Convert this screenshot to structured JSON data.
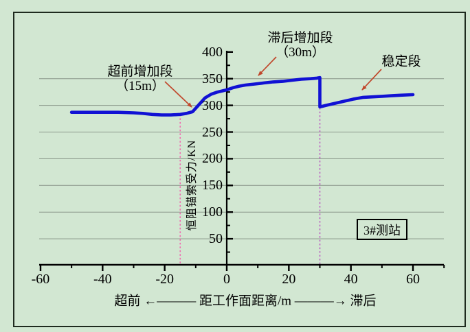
{
  "colors": {
    "background": "#d2e7d2",
    "frame_border": "#1f2b1f",
    "grid": "#879487",
    "axis": "#000000",
    "curve": "#1111d4",
    "arrow": "#c0472b"
  },
  "chart_data": {
    "type": "line",
    "title": "",
    "xlabel": "超前 ←——— 距工作面距离/m ———→ 滞后",
    "ylabel": "恒阻锚索受力/KN",
    "xlim": [
      -60,
      70
    ],
    "ylim": [
      0,
      400
    ],
    "x_ticks": [
      -60,
      -40,
      -20,
      0,
      20,
      40,
      60
    ],
    "x_minor_step": 10,
    "y_ticks": [
      50,
      100,
      150,
      200,
      250,
      300,
      350,
      400
    ],
    "y_minor_step": 25,
    "y_gridlines": [
      50,
      100,
      150,
      200,
      250,
      300,
      350
    ],
    "grid": "horizontal-only",
    "legend": "none",
    "station_label": "3#测站",
    "series": [
      {
        "name": "恒阻锚索受力",
        "color": "#1111d4",
        "points": [
          [
            -50,
            287
          ],
          [
            -45,
            287
          ],
          [
            -40,
            287
          ],
          [
            -35,
            287
          ],
          [
            -30,
            286
          ],
          [
            -27,
            285
          ],
          [
            -24,
            283
          ],
          [
            -21,
            282
          ],
          [
            -18,
            282
          ],
          [
            -15,
            283
          ],
          [
            -13,
            285
          ],
          [
            -11,
            288
          ],
          [
            -9,
            301
          ],
          [
            -7,
            314
          ],
          [
            -5,
            321
          ],
          [
            -3,
            325
          ],
          [
            0,
            329
          ],
          [
            2,
            333
          ],
          [
            4,
            336
          ],
          [
            6,
            338
          ],
          [
            9,
            340
          ],
          [
            12,
            342
          ],
          [
            15,
            344
          ],
          [
            18,
            345
          ],
          [
            21,
            347
          ],
          [
            24,
            349
          ],
          [
            27,
            350
          ],
          [
            29,
            351
          ],
          [
            30,
            352
          ],
          [
            30,
            297
          ],
          [
            32,
            300
          ],
          [
            35,
            304
          ],
          [
            38,
            308
          ],
          [
            41,
            312
          ],
          [
            44,
            315
          ],
          [
            47,
            316
          ],
          [
            50,
            317
          ],
          [
            53,
            318
          ],
          [
            56,
            319
          ],
          [
            60,
            320
          ]
        ]
      }
    ],
    "boundaries": [
      {
        "x": -15,
        "color": "#f06ab0"
      },
      {
        "x": 30,
        "color": "#bb63c2"
      }
    ],
    "annotations": [
      {
        "lines": [
          "超前增加段",
          "（15m）"
        ]
      },
      {
        "lines": [
          "滞后增加段",
          "（30m）"
        ]
      },
      {
        "lines": [
          "稳定段"
        ]
      }
    ]
  }
}
